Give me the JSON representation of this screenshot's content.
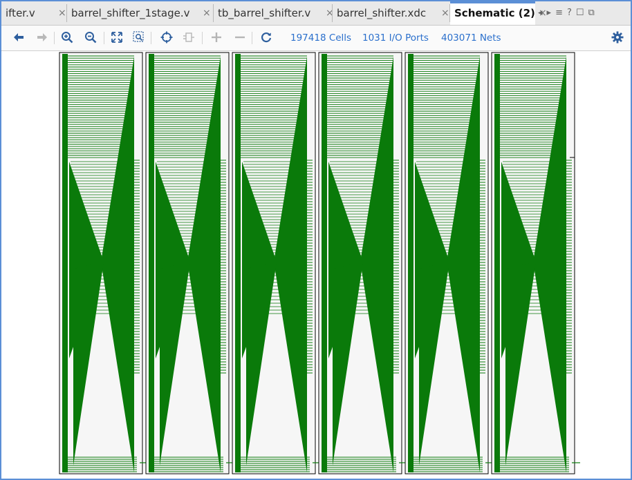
{
  "tabs": [
    {
      "label": "ifter.v",
      "active": false
    },
    {
      "label": "barrel_shifter_1stage.v",
      "active": false
    },
    {
      "label": "tb_barrel_shifter.v",
      "active": false
    },
    {
      "label": "barrel_shifter.xdc",
      "active": false
    },
    {
      "label": "Schematic (2)",
      "active": true
    }
  ],
  "tab_close_glyph": "×",
  "tab_controls": {
    "left": "◂",
    "right": "▸",
    "menu": "≡",
    "help": "?",
    "maximize": "☐",
    "restore": "⧉"
  },
  "toolbar": {
    "stats": {
      "cells": "197418 Cells",
      "ports": "1031 I/O Ports",
      "nets": "403071 Nets"
    },
    "icons": [
      "back-icon",
      "forward-icon",
      "zoom-in-icon",
      "zoom-out-icon",
      "zoom-fit-icon",
      "zoom-area-icon",
      "center-icon",
      "collapse-icon",
      "expand-icon",
      "remove-icon",
      "refresh-icon",
      "settings-icon"
    ]
  },
  "colors": {
    "net": "#0a7a0a",
    "cell_border": "#000000",
    "cell_fill": "#f6f6f6",
    "stat_text": "#2a6fcc",
    "tab_accent": "#5b8fd6"
  },
  "schematic": {
    "block_count": 6
  }
}
